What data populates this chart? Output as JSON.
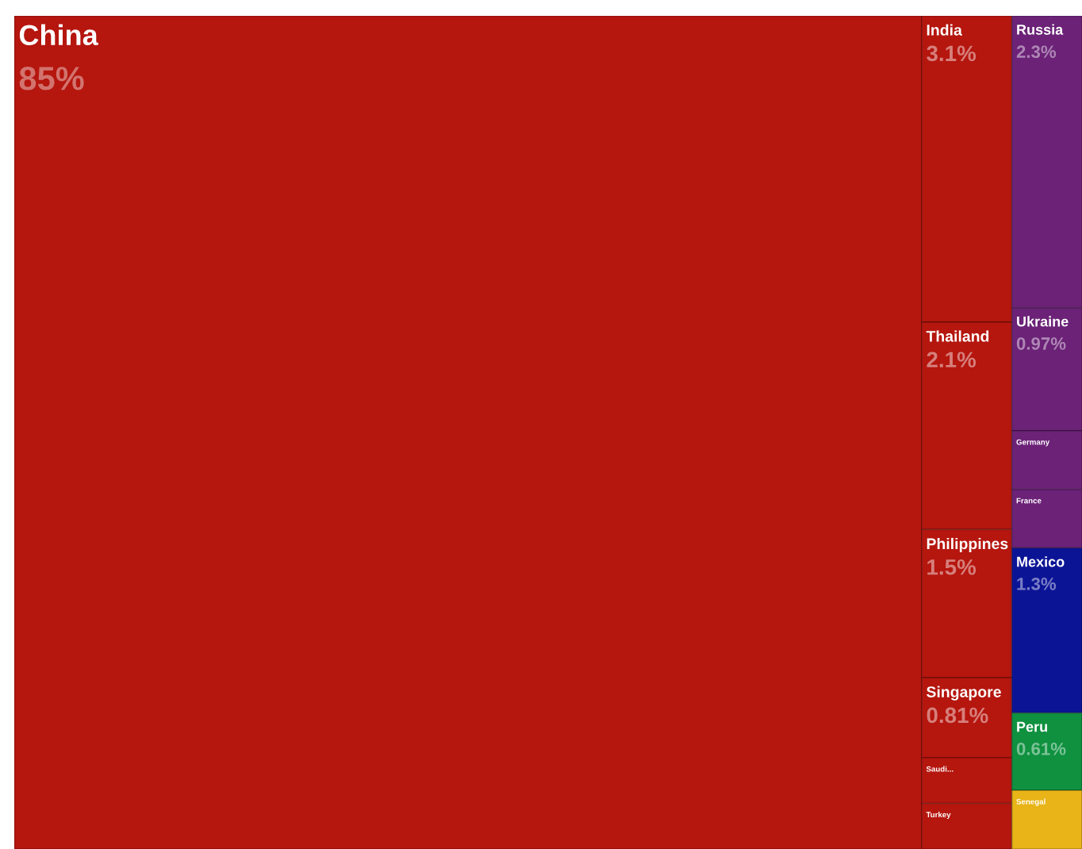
{
  "chart_data": {
    "type": "other",
    "categories": [
      "China",
      "India",
      "Thailand",
      "Philippines",
      "Singapore",
      "Saudi...",
      "Turkey",
      "Russia",
      "Ukraine",
      "Germany",
      "France",
      "Mexico",
      "Peru",
      "Senegal"
    ],
    "values": [
      85,
      3.1,
      2.1,
      1.5,
      0.81,
      null,
      null,
      2.3,
      0.97,
      null,
      null,
      1.3,
      0.61,
      null
    ],
    "value_labels": [
      "85%",
      "3.1%",
      "2.1%",
      "1.5%",
      "0.81%",
      null,
      null,
      "2.3%",
      "0.97%",
      null,
      null,
      "1.3%",
      "0.61%",
      null
    ],
    "colors": [
      "#b5160e",
      "#b5160e",
      "#b5160e",
      "#b5160e",
      "#b5160e",
      "#b5160e",
      "#b5160e",
      "#6b2277",
      "#6b2277",
      "#6b2277",
      "#6b2277",
      "#0c1496",
      "#0f9140",
      "#e8b417"
    ]
  }
}
